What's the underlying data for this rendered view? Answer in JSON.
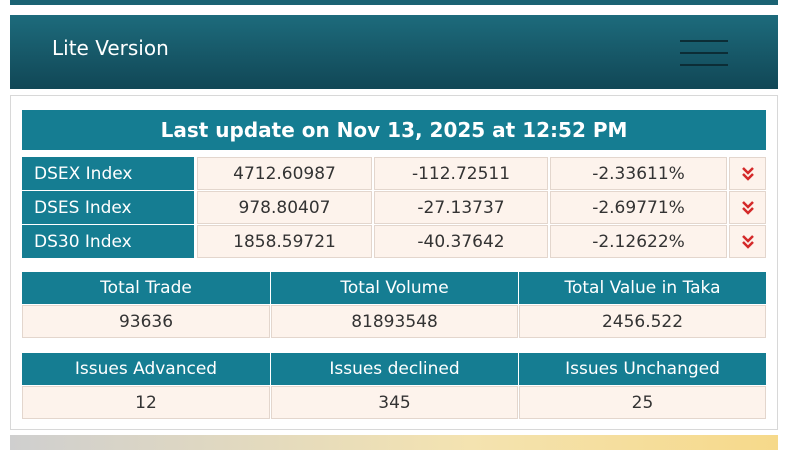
{
  "header": {
    "title": "Lite Version"
  },
  "update": "Last update on Nov 13, 2025 at 12:52 PM",
  "indices": [
    {
      "name": "DSEX Index",
      "value": "4712.60987",
      "change": "-112.72511",
      "percent": "-2.33611%"
    },
    {
      "name": "DSES Index",
      "value": "978.80407",
      "change": "-27.13737",
      "percent": "-2.69771%"
    },
    {
      "name": "DS30 Index",
      "value": "1858.59721",
      "change": "-40.37642",
      "percent": "-2.12622%"
    }
  ],
  "summary": {
    "headers": [
      "Total Trade",
      "Total Volume",
      "Total Value in Taka"
    ],
    "values": [
      "93636",
      "81893548",
      "2456.522"
    ]
  },
  "issues": {
    "headers": [
      "Issues Advanced",
      "Issues declined",
      "Issues Unchanged"
    ],
    "values": [
      "12",
      "345",
      "25"
    ]
  }
}
